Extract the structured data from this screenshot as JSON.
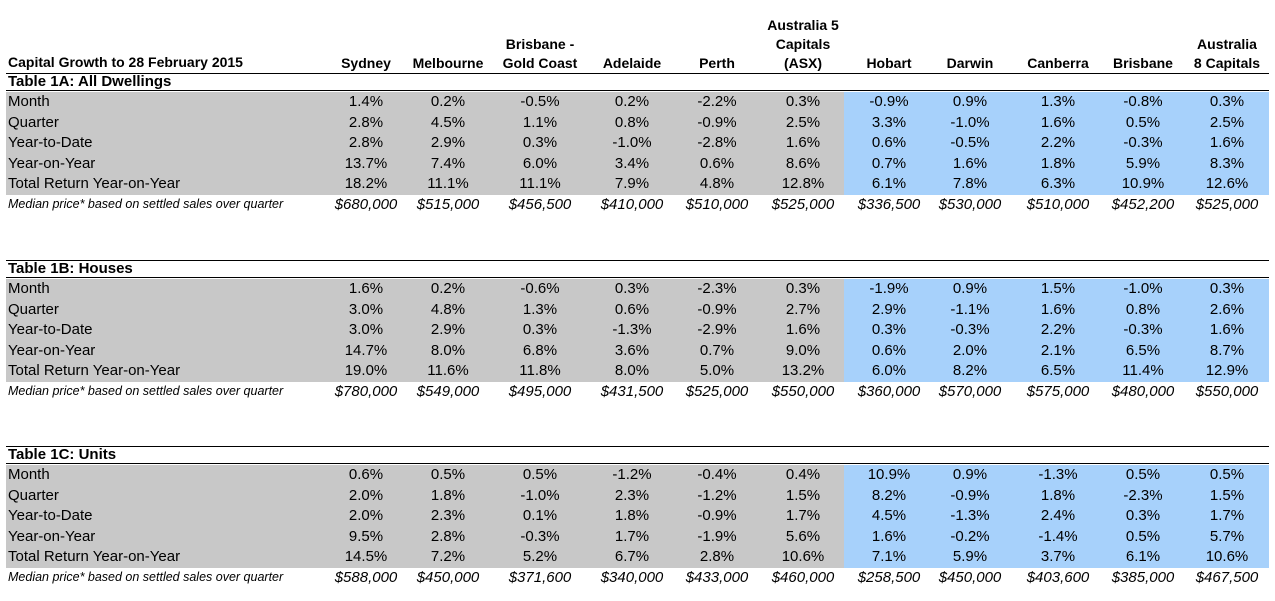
{
  "header": {
    "title": "Capital Growth to 28 February 2015",
    "columns": [
      {
        "lines": [
          "",
          "",
          "Sydney"
        ]
      },
      {
        "lines": [
          "",
          "",
          "Melbourne"
        ]
      },
      {
        "lines": [
          "",
          "Brisbane -",
          "Gold Coast"
        ]
      },
      {
        "lines": [
          "",
          "",
          "Adelaide"
        ]
      },
      {
        "lines": [
          "",
          "",
          "Perth"
        ]
      },
      {
        "lines": [
          "Australia 5",
          "Capitals",
          "(ASX)"
        ]
      },
      {
        "lines": [
          "",
          "",
          "Hobart"
        ]
      },
      {
        "lines": [
          "",
          "",
          "Darwin"
        ]
      },
      {
        "lines": [
          "",
          "",
          "Canberra"
        ]
      },
      {
        "lines": [
          "",
          "",
          "Brisbane"
        ]
      },
      {
        "lines": [
          "",
          "Australia",
          "8 Capitals"
        ]
      }
    ]
  },
  "colors": {
    "grey_band": "#c8c8c8",
    "blue_band": "#a7d1fb"
  },
  "tables": [
    {
      "title": "Table 1A: All Dwellings",
      "rows": [
        {
          "label": "Month",
          "values": [
            "1.4%",
            "0.2%",
            "-0.5%",
            "0.2%",
            "-2.2%",
            "0.3%",
            "-0.9%",
            "0.9%",
            "1.3%",
            "-0.8%",
            "0.3%"
          ]
        },
        {
          "label": "Quarter",
          "values": [
            "2.8%",
            "4.5%",
            "1.1%",
            "0.8%",
            "-0.9%",
            "2.5%",
            "3.3%",
            "-1.0%",
            "1.6%",
            "0.5%",
            "2.5%"
          ]
        },
        {
          "label": "Year-to-Date",
          "values": [
            "2.8%",
            "2.9%",
            "0.3%",
            "-1.0%",
            "-2.8%",
            "1.6%",
            "0.6%",
            "-0.5%",
            "2.2%",
            "-0.3%",
            "1.6%"
          ]
        },
        {
          "label": "Year-on-Year",
          "values": [
            "13.7%",
            "7.4%",
            "6.0%",
            "3.4%",
            "0.6%",
            "8.6%",
            "0.7%",
            "1.6%",
            "1.8%",
            "5.9%",
            "8.3%"
          ]
        },
        {
          "label": "Total Return Year-on-Year",
          "values": [
            "18.2%",
            "11.1%",
            "11.1%",
            "7.9%",
            "4.8%",
            "12.8%",
            "6.1%",
            "7.8%",
            "6.3%",
            "10.9%",
            "12.6%"
          ]
        }
      ],
      "median": {
        "label": "Median price* based on settled sales over quarter",
        "values": [
          "$680,000",
          "$515,000",
          "$456,500",
          "$410,000",
          "$510,000",
          "$525,000",
          "$336,500",
          "$530,000",
          "$510,000",
          "$452,200",
          "$525,000"
        ]
      }
    },
    {
      "title": "Table 1B: Houses",
      "rows": [
        {
          "label": "Month",
          "values": [
            "1.6%",
            "0.2%",
            "-0.6%",
            "0.3%",
            "-2.3%",
            "0.3%",
            "-1.9%",
            "0.9%",
            "1.5%",
            "-1.0%",
            "0.3%"
          ]
        },
        {
          "label": "Quarter",
          "values": [
            "3.0%",
            "4.8%",
            "1.3%",
            "0.6%",
            "-0.9%",
            "2.7%",
            "2.9%",
            "-1.1%",
            "1.6%",
            "0.8%",
            "2.6%"
          ]
        },
        {
          "label": "Year-to-Date",
          "values": [
            "3.0%",
            "2.9%",
            "0.3%",
            "-1.3%",
            "-2.9%",
            "1.6%",
            "0.3%",
            "-0.3%",
            "2.2%",
            "-0.3%",
            "1.6%"
          ]
        },
        {
          "label": "Year-on-Year",
          "values": [
            "14.7%",
            "8.0%",
            "6.8%",
            "3.6%",
            "0.7%",
            "9.0%",
            "0.6%",
            "2.0%",
            "2.1%",
            "6.5%",
            "8.7%"
          ]
        },
        {
          "label": "Total Return Year-on-Year",
          "values": [
            "19.0%",
            "11.6%",
            "11.8%",
            "8.0%",
            "5.0%",
            "13.2%",
            "6.0%",
            "8.2%",
            "6.5%",
            "11.4%",
            "12.9%"
          ]
        }
      ],
      "median": {
        "label": "Median price* based on settled sales over quarter",
        "values": [
          "$780,000",
          "$549,000",
          "$495,000",
          "$431,500",
          "$525,000",
          "$550,000",
          "$360,000",
          "$570,000",
          "$575,000",
          "$480,000",
          "$550,000"
        ]
      }
    },
    {
      "title": "Table 1C: Units",
      "rows": [
        {
          "label": "Month",
          "values": [
            "0.6%",
            "0.5%",
            "0.5%",
            "-1.2%",
            "-0.4%",
            "0.4%",
            "10.9%",
            "0.9%",
            "-1.3%",
            "0.5%",
            "0.5%"
          ]
        },
        {
          "label": "Quarter",
          "values": [
            "2.0%",
            "1.8%",
            "-1.0%",
            "2.3%",
            "-1.2%",
            "1.5%",
            "8.2%",
            "-0.9%",
            "1.8%",
            "-2.3%",
            "1.5%"
          ]
        },
        {
          "label": "Year-to-Date",
          "values": [
            "2.0%",
            "2.3%",
            "0.1%",
            "1.8%",
            "-0.9%",
            "1.7%",
            "4.5%",
            "-1.3%",
            "2.4%",
            "0.3%",
            "1.7%"
          ]
        },
        {
          "label": "Year-on-Year",
          "values": [
            "9.5%",
            "2.8%",
            "-0.3%",
            "1.7%",
            "-1.9%",
            "5.6%",
            "1.6%",
            "-0.2%",
            "-1.4%",
            "0.5%",
            "5.7%"
          ]
        },
        {
          "label": "Total Return Year-on-Year",
          "values": [
            "14.5%",
            "7.2%",
            "5.2%",
            "6.7%",
            "2.8%",
            "10.6%",
            "7.1%",
            "5.9%",
            "3.7%",
            "6.1%",
            "10.6%"
          ]
        }
      ],
      "median": {
        "label": "Median price* based on settled sales over quarter",
        "values": [
          "$588,000",
          "$450,000",
          "$371,600",
          "$340,000",
          "$433,000",
          "$460,000",
          "$258,500",
          "$450,000",
          "$403,600",
          "$385,000",
          "$467,500"
        ]
      }
    }
  ]
}
